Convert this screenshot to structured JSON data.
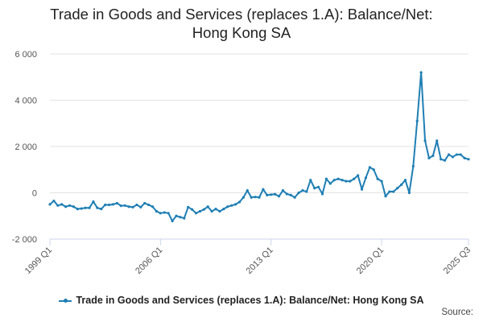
{
  "chart_data": {
    "type": "line",
    "title_line1": "Trade in Goods and Services (replaces 1.A): Balance/Net:",
    "title_line2": "Hong Kong SA",
    "xlabel": "",
    "ylabel": "",
    "ylim": [
      -2000,
      6000
    ],
    "yticks": [
      -2000,
      0,
      2000,
      4000,
      6000
    ],
    "ytick_labels": [
      "-2 000",
      "0",
      "2 000",
      "4 000",
      "6 000"
    ],
    "xticks": [
      {
        "label": "1999 Q1",
        "index": 0
      },
      {
        "label": "2006 Q1",
        "index": 28
      },
      {
        "label": "2013 Q1",
        "index": 56
      },
      {
        "label": "2020 Q1",
        "index": 84
      },
      {
        "label": "2025 Q3",
        "index": 106
      }
    ],
    "grid": true,
    "legend_position": "bottom",
    "series": [
      {
        "name": "Trade in Goods and Services (replaces 1.A): Balance/Net: Hong Kong SA",
        "color": "#1f7fb4",
        "values": [
          -500,
          -350,
          -550,
          -500,
          -600,
          -550,
          -600,
          -700,
          -680,
          -650,
          -650,
          -380,
          -650,
          -700,
          -520,
          -520,
          -500,
          -450,
          -560,
          -550,
          -600,
          -620,
          -520,
          -620,
          -450,
          -520,
          -600,
          -800,
          -880,
          -850,
          -880,
          -1220,
          -1000,
          -1050,
          -1100,
          -620,
          -720,
          -880,
          -800,
          -720,
          -600,
          -800,
          -700,
          -800,
          -700,
          -600,
          -550,
          -500,
          -400,
          -200,
          100,
          -200,
          -180,
          -200,
          150,
          -100,
          -80,
          -60,
          -150,
          100,
          -50,
          -100,
          -200,
          0,
          100,
          50,
          550,
          200,
          250,
          -50,
          600,
          400,
          550,
          600,
          550,
          500,
          500,
          600,
          750,
          150,
          650,
          1100,
          1000,
          600,
          500,
          -150,
          50,
          50,
          200,
          350,
          550,
          0,
          1150,
          3100,
          5200,
          2250,
          1500,
          1600,
          2250,
          1450,
          1400,
          1650,
          1550,
          1650,
          1650,
          1500,
          1450
        ]
      }
    ]
  },
  "legend": {
    "label": "Trade in Goods and Services (replaces 1.A): Balance/Net: Hong Kong SA"
  },
  "source": {
    "label": "Source:"
  }
}
